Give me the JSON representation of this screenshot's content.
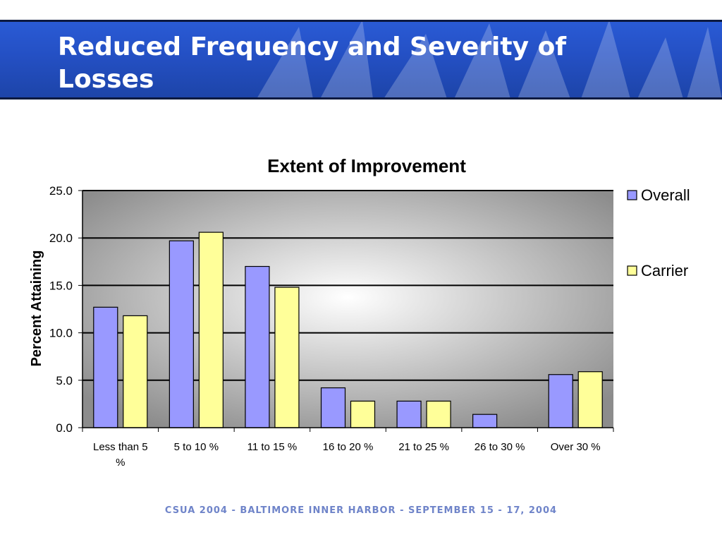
{
  "slide": {
    "title": "Reduced Frequency and Severity of Losses",
    "footer": "CSUA 2004 - BALTIMORE INNER HARBOR - SEPTEMBER 15 - 17, 2004"
  },
  "chart_data": {
    "type": "bar",
    "title": "Extent of Improvement",
    "ylabel": "Percent Attaining",
    "xlabel": "",
    "ylim": [
      0,
      25
    ],
    "yticks": [
      "0.0",
      "5.0",
      "10.0",
      "15.0",
      "20.0",
      "25.0"
    ],
    "categories": [
      "Less than 5 %",
      "5 to 10 %",
      "11 to 15 %",
      "16 to 20 %",
      "21 to 25 %",
      "26 to 30 %",
      "Over 30 %"
    ],
    "series": [
      {
        "name": "Overall",
        "values": [
          12.7,
          19.7,
          17.0,
          4.2,
          2.8,
          1.4,
          5.6
        ]
      },
      {
        "name": "Carrier",
        "values": [
          11.8,
          20.6,
          14.8,
          2.8,
          2.8,
          0,
          5.9
        ]
      }
    ],
    "colors": {
      "Overall": "#9999ff",
      "Carrier": "#ffff99"
    },
    "legend": "right",
    "grid": true
  }
}
